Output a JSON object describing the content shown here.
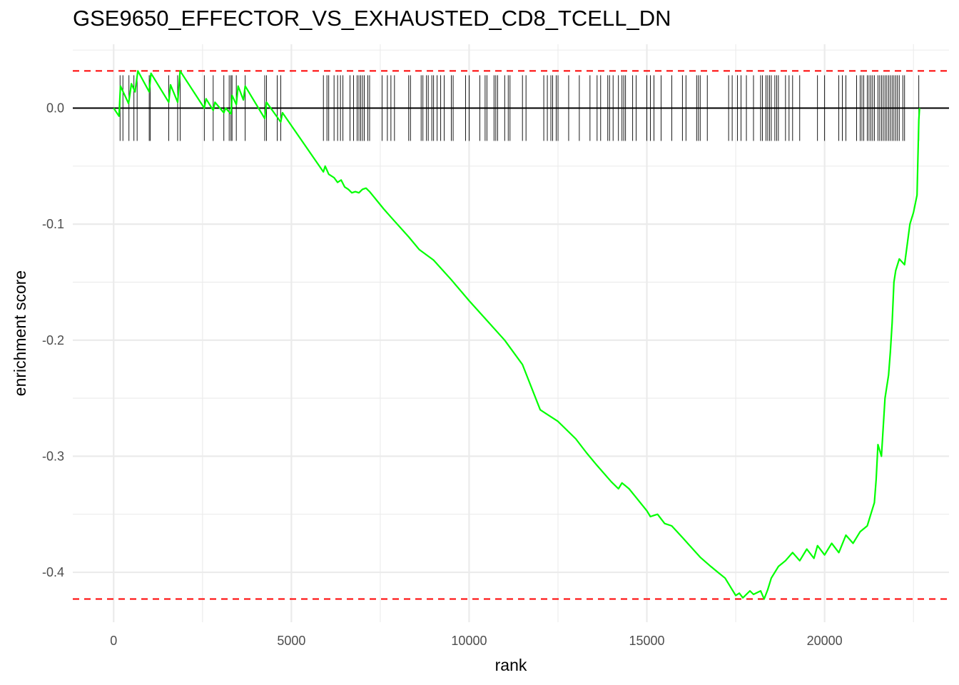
{
  "chart_data": {
    "type": "line",
    "title": "GSE9650_EFFECTOR_VS_EXHAUSTED_CD8_TCELL_DN",
    "xlabel": "rank",
    "ylabel": "enrichment score",
    "xlim": [
      -1150,
      23500
    ],
    "ylim": [
      -0.443,
      0.055
    ],
    "x_ticks": [
      0,
      5000,
      10000,
      15000,
      20000
    ],
    "y_ticks": [
      0.0,
      -0.1,
      -0.2,
      -0.3,
      -0.4
    ],
    "x_tick_labels": [
      "0",
      "5000",
      "10000",
      "15000",
      "20000"
    ],
    "y_tick_labels": [
      "0.0",
      "-0.1",
      "-0.2",
      "-0.3",
      "-0.4"
    ],
    "grid": true,
    "legend": "none",
    "colors": {
      "curve": "#00ff00",
      "bounds": "#ff0000",
      "zero_line": "#000000",
      "hits": "#000000",
      "grid": "#ebebeb"
    },
    "max_es": 0.032,
    "min_es": -0.423,
    "series": [
      {
        "x": [
          0,
          150,
          190,
          420,
          500,
          600,
          680,
          1000,
          1050,
          1550,
          1600,
          1800,
          1870,
          2550,
          2600,
          2800,
          2850,
          3100,
          3150,
          3300,
          3330,
          3450,
          3500,
          3650,
          3700,
          4250,
          4300,
          4700,
          4750,
          5900,
          5950,
          6050,
          6200,
          6300,
          6400,
          6500,
          6600,
          6700,
          6800,
          6900,
          7000,
          7100,
          7200,
          7600,
          7800,
          8300,
          8600,
          9000,
          9500,
          10000,
          10500,
          11000,
          11500,
          12000,
          12500,
          13000,
          13300,
          13600,
          14000,
          14200,
          14300,
          14500,
          15000,
          15100,
          15300,
          15500,
          15700,
          16000,
          16500,
          16800,
          17000,
          17200,
          17500,
          17600,
          17700,
          17900,
          18000,
          18200,
          18300,
          18400,
          18500,
          18700,
          18900,
          19100,
          19300,
          19500,
          19700,
          19800,
          20000,
          20200,
          20400,
          20600,
          20800,
          21000,
          21200,
          21300,
          21400,
          21450,
          21500,
          21600,
          21700,
          21800,
          21850,
          21900,
          21950,
          22000,
          22100,
          22250,
          22400,
          22500,
          22600,
          22650,
          22670
        ],
        "y": [
          0.0,
          -0.007,
          0.019,
          0.004,
          0.021,
          0.014,
          0.032,
          0.014,
          0.03,
          0.005,
          0.02,
          0.005,
          0.032,
          -0.0,
          0.008,
          -0.002,
          0.005,
          -0.004,
          0.0,
          -0.005,
          0.011,
          0.003,
          0.019,
          0.007,
          0.019,
          -0.009,
          0.005,
          -0.012,
          -0.004,
          -0.055,
          -0.05,
          -0.057,
          -0.06,
          -0.064,
          -0.062,
          -0.068,
          -0.07,
          -0.073,
          -0.072,
          -0.073,
          -0.07,
          -0.069,
          -0.072,
          -0.087,
          -0.094,
          -0.111,
          -0.122,
          -0.131,
          -0.148,
          -0.166,
          -0.183,
          -0.2,
          -0.221,
          -0.26,
          -0.27,
          -0.285,
          -0.297,
          -0.308,
          -0.322,
          -0.328,
          -0.323,
          -0.328,
          -0.347,
          -0.352,
          -0.35,
          -0.358,
          -0.36,
          -0.37,
          -0.387,
          -0.395,
          -0.4,
          -0.405,
          -0.42,
          -0.418,
          -0.422,
          -0.416,
          -0.419,
          -0.416,
          -0.423,
          -0.415,
          -0.405,
          -0.395,
          -0.39,
          -0.383,
          -0.39,
          -0.38,
          -0.388,
          -0.377,
          -0.385,
          -0.375,
          -0.383,
          -0.368,
          -0.375,
          -0.365,
          -0.36,
          -0.35,
          -0.34,
          -0.32,
          -0.29,
          -0.3,
          -0.25,
          -0.23,
          -0.21,
          -0.185,
          -0.15,
          -0.14,
          -0.13,
          -0.135,
          -0.1,
          -0.09,
          -0.075,
          -0.01,
          0.0
        ]
      }
    ],
    "hits": [
      180,
      260,
      430,
      570,
      660,
      1000,
      1030,
      1550,
      1800,
      1870,
      2550,
      2800,
      3100,
      3250,
      3300,
      3330,
      3450,
      3700,
      4250,
      4300,
      4600,
      4700,
      5900,
      6000,
      6050,
      6200,
      6300,
      6380,
      6450,
      6650,
      6750,
      6850,
      6900,
      6950,
      7000,
      7050,
      7150,
      7200,
      7550,
      7700,
      7800,
      7900,
      8300,
      8350,
      8650,
      8700,
      8800,
      8850,
      8950,
      9000,
      9100,
      9200,
      9300,
      9500,
      9550,
      9900,
      10000,
      10300,
      10450,
      10500,
      10700,
      10750,
      10800,
      11000,
      11100,
      11150,
      11500,
      11600,
      12100,
      12200,
      12300,
      12350,
      12450,
      12500,
      12800,
      13100,
      13400,
      13600,
      13700,
      13900,
      13950,
      14050,
      14200,
      14300,
      14350,
      14400,
      14600,
      14700,
      15000,
      15100,
      15200,
      15400,
      15700,
      16000,
      16100,
      16400,
      16450,
      16500,
      16700,
      17300,
      17400,
      17550,
      17650,
      17800,
      18000,
      18200,
      18250,
      18350,
      18400,
      18450,
      18500,
      18600,
      18650,
      18700,
      18900,
      19000,
      19100,
      19300,
      19800,
      20000,
      20400,
      20500,
      20600,
      20900,
      21000,
      21050,
      21100,
      21200,
      21250,
      21300,
      21350,
      21400,
      21500,
      21550,
      21600,
      21650,
      21700,
      21750,
      21800,
      21850,
      21900,
      21950,
      22000,
      22050,
      22100,
      22200,
      22250,
      22650
    ]
  }
}
